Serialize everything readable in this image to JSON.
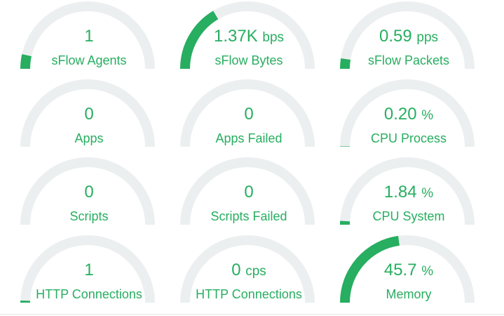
{
  "theme": {
    "accent": "#27ae60",
    "track": "#eceff0"
  },
  "gauges": [
    {
      "value": "1",
      "unit": "",
      "label": "sFlow Agents",
      "fraction": 0.07
    },
    {
      "value": "1.37K",
      "unit": "bps",
      "label": "sFlow Bytes",
      "fraction": 0.33
    },
    {
      "value": "0.59",
      "unit": "pps",
      "label": "sFlow Packets",
      "fraction": 0.05
    },
    {
      "value": "0",
      "unit": "",
      "label": "Apps",
      "fraction": 0
    },
    {
      "value": "0",
      "unit": "",
      "label": "Apps Failed",
      "fraction": 0
    },
    {
      "value": "0.20",
      "unit": "%",
      "label": "CPU Process",
      "fraction": 0.002
    },
    {
      "value": "0",
      "unit": "",
      "label": "Scripts",
      "fraction": 0
    },
    {
      "value": "0",
      "unit": "",
      "label": "Scripts Failed",
      "fraction": 0
    },
    {
      "value": "1.84",
      "unit": "%",
      "label": "CPU System",
      "fraction": 0.0184
    },
    {
      "value": "1",
      "unit": "",
      "label": "HTTP Connections",
      "fraction": 0.01
    },
    {
      "value": "0",
      "unit": "cps",
      "label": "HTTP Connections",
      "fraction": 0
    },
    {
      "value": "45.7",
      "unit": "%",
      "label": "Memory",
      "fraction": 0.457
    }
  ]
}
